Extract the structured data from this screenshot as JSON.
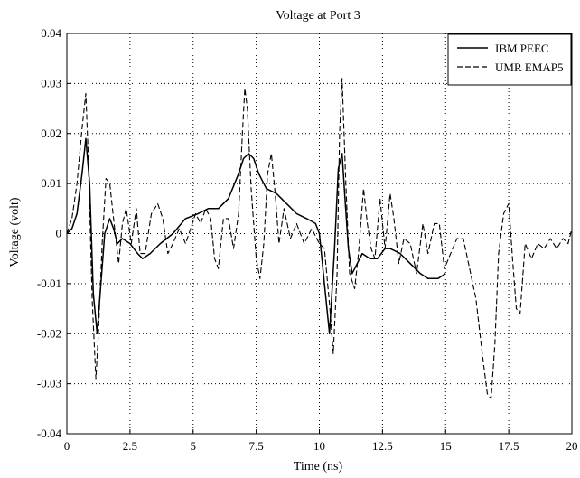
{
  "chart_data": {
    "type": "line",
    "title": "Voltage at Port 3",
    "xlabel": "Time (ns)",
    "ylabel": "Voltage (volt)",
    "xlim": [
      0,
      20
    ],
    "ylim": [
      -0.04,
      0.04
    ],
    "xticks": [
      0,
      2.5,
      5,
      7.5,
      10,
      12.5,
      15,
      17.5,
      20
    ],
    "yticks": [
      -0.04,
      -0.03,
      -0.02,
      -0.01,
      0,
      0.01,
      0.02,
      0.03,
      0.04
    ],
    "xtick_labels": [
      "0",
      "2.5",
      "5",
      "7.5",
      "10",
      "12.5",
      "15",
      "17.5",
      "20"
    ],
    "ytick_labels": [
      "-0.04",
      "-0.03",
      "-0.02",
      "-0.01",
      "0",
      "0.01",
      "0.02",
      "0.03",
      "0.04"
    ],
    "grid": true,
    "grid_style": "dotted",
    "legend_position": "top-right",
    "series": [
      {
        "name": "IBM PEEC",
        "style": "solid",
        "color": "#000000",
        "x": [
          0,
          0.2,
          0.4,
          0.6,
          0.75,
          0.9,
          1.05,
          1.2,
          1.35,
          1.5,
          1.7,
          1.85,
          2.0,
          2.2,
          2.5,
          2.8,
          3.0,
          3.3,
          3.7,
          4.2,
          4.7,
          5.2,
          5.6,
          6.0,
          6.4,
          6.8,
          7.0,
          7.2,
          7.4,
          7.6,
          7.9,
          8.3,
          8.7,
          9.1,
          9.5,
          9.85,
          10.0,
          10.2,
          10.4,
          10.6,
          10.75,
          10.9,
          11.0,
          11.15,
          11.3,
          11.5,
          11.7,
          12.0,
          12.3,
          12.6,
          12.8,
          13.2,
          13.6,
          14.0,
          14.3,
          14.7,
          15.0
        ],
        "y": [
          0,
          0.001,
          0.004,
          0.012,
          0.019,
          0.01,
          -0.012,
          -0.02,
          -0.01,
          0,
          0.003,
          0.001,
          -0.002,
          -0.001,
          -0.002,
          -0.004,
          -0.005,
          -0.004,
          -0.002,
          0,
          0.003,
          0.004,
          0.005,
          0.005,
          0.007,
          0.012,
          0.015,
          0.016,
          0.015,
          0.012,
          0.009,
          0.008,
          0.006,
          0.004,
          0.003,
          0.002,
          0,
          -0.01,
          -0.02,
          -0.003,
          0.013,
          0.016,
          0.008,
          -0.003,
          -0.008,
          -0.006,
          -0.004,
          -0.005,
          -0.005,
          -0.003,
          -0.003,
          -0.004,
          -0.006,
          -0.008,
          -0.009,
          -0.009,
          -0.008
        ]
      },
      {
        "name": "UMR EMAP5",
        "style": "dashed",
        "color": "#000000",
        "x": [
          0,
          0.2,
          0.4,
          0.6,
          0.75,
          0.85,
          1.0,
          1.15,
          1.25,
          1.4,
          1.55,
          1.7,
          1.85,
          2.05,
          2.2,
          2.35,
          2.55,
          2.75,
          2.9,
          3.1,
          3.35,
          3.6,
          3.8,
          4.0,
          4.2,
          4.45,
          4.7,
          4.9,
          5.1,
          5.3,
          5.5,
          5.7,
          5.85,
          6.0,
          6.2,
          6.4,
          6.6,
          6.8,
          6.95,
          7.05,
          7.15,
          7.3,
          7.5,
          7.65,
          7.8,
          7.95,
          8.1,
          8.25,
          8.4,
          8.6,
          8.85,
          9.1,
          9.4,
          9.7,
          10.0,
          10.2,
          10.4,
          10.55,
          10.7,
          10.8,
          10.9,
          11.05,
          11.2,
          11.4,
          11.55,
          11.75,
          11.9,
          12.05,
          12.2,
          12.4,
          12.6,
          12.8,
          12.95,
          13.15,
          13.35,
          13.6,
          13.85,
          14.1,
          14.3,
          14.55,
          14.75,
          14.95,
          15.2,
          15.45,
          15.7,
          15.95,
          16.2,
          16.45,
          16.65,
          16.8,
          16.95,
          17.1,
          17.3,
          17.5,
          17.65,
          17.8,
          17.95,
          18.15,
          18.4,
          18.65,
          18.9,
          19.15,
          19.4,
          19.65,
          19.85,
          20.0
        ],
        "y": [
          0,
          0.003,
          0.01,
          0.021,
          0.028,
          0.015,
          -0.013,
          -0.029,
          -0.02,
          -0.002,
          0.011,
          0.01,
          0.003,
          -0.006,
          0.002,
          0.005,
          -0.002,
          0.005,
          -0.004,
          -0.004,
          0.004,
          0.006,
          0.003,
          -0.004,
          -0.002,
          0.001,
          -0.002,
          0.001,
          0.004,
          0.002,
          0.005,
          0.003,
          -0.005,
          -0.007,
          0.003,
          0.003,
          -0.003,
          0.004,
          0.02,
          0.029,
          0.025,
          0.009,
          -0.005,
          -0.009,
          -0.002,
          0.012,
          0.016,
          0.008,
          -0.002,
          0.005,
          -0.001,
          0.002,
          -0.002,
          0.001,
          -0.002,
          -0.003,
          -0.014,
          -0.024,
          -0.008,
          0.02,
          0.031,
          0.01,
          -0.008,
          -0.011,
          -0.004,
          0.009,
          0.002,
          -0.003,
          -0.005,
          0.007,
          -0.003,
          0.008,
          0.003,
          -0.006,
          -0.001,
          -0.002,
          -0.008,
          0.002,
          -0.004,
          0.002,
          0.002,
          -0.007,
          -0.004,
          -0.001,
          -0.001,
          -0.007,
          -0.013,
          -0.024,
          -0.032,
          -0.033,
          -0.022,
          -0.004,
          0.004,
          0.006,
          -0.005,
          -0.015,
          -0.016,
          -0.002,
          -0.005,
          -0.002,
          -0.003,
          -0.001,
          -0.003,
          -0.001,
          -0.002,
          0.001
        ]
      }
    ]
  }
}
